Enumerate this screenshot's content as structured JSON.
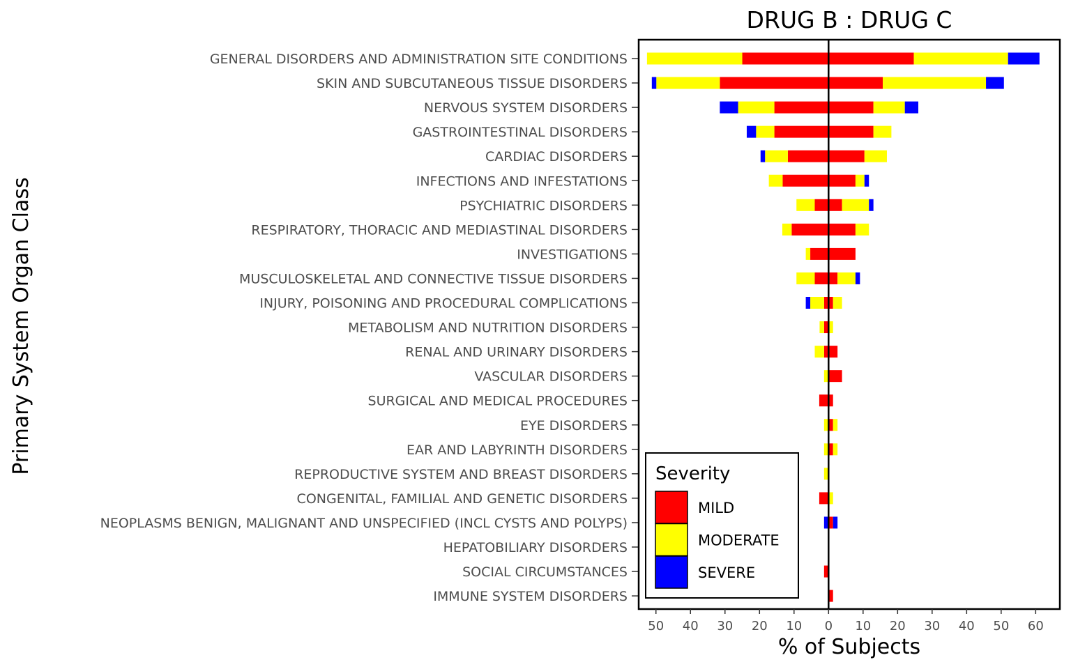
{
  "chart_data": {
    "type": "bar",
    "orientation": "horizontal",
    "stacked": "diverging",
    "title": "DRUG B : DRUG C",
    "xlabel": "% of Subjects",
    "ylabel": "Primary System Organ Class",
    "xlim": [
      -55,
      67
    ],
    "xticks": [
      -50,
      -40,
      -30,
      -20,
      -10,
      0,
      10,
      20,
      30,
      40,
      50,
      60
    ],
    "xtick_labels": [
      "50",
      "40",
      "30",
      "20",
      "10",
      "0",
      "10",
      "20",
      "30",
      "40",
      "50",
      "60"
    ],
    "left_group": "DRUG B",
    "right_group": "DRUG C",
    "grid": false,
    "legend_position": "bottom-left-inside",
    "legend_title": "Severity",
    "categories": [
      "GENERAL DISORDERS AND ADMINISTRATION SITE CONDITIONS",
      "SKIN AND SUBCUTANEOUS TISSUE DISORDERS",
      "NERVOUS SYSTEM DISORDERS",
      "GASTROINTESTINAL DISORDERS",
      "CARDIAC DISORDERS",
      "INFECTIONS AND INFESTATIONS",
      "PSYCHIATRIC DISORDERS",
      "RESPIRATORY, THORACIC AND MEDIASTINAL DISORDERS",
      "INVESTIGATIONS",
      "MUSCULOSKELETAL AND CONNECTIVE TISSUE DISORDERS",
      "INJURY, POISONING AND PROCEDURAL COMPLICATIONS",
      "METABOLISM AND NUTRITION DISORDERS",
      "RENAL AND URINARY DISORDERS",
      "VASCULAR DISORDERS",
      "SURGICAL AND MEDICAL PROCEDURES",
      "EYE DISORDERS",
      "EAR AND LABYRINTH DISORDERS",
      "REPRODUCTIVE SYSTEM AND BREAST DISORDERS",
      "CONGENITAL, FAMILIAL AND GENETIC DISORDERS",
      "NEOPLASMS BENIGN, MALIGNANT AND UNSPECIFIED (INCL CYSTS AND POLYPS)",
      "HEPATOBILIARY DISORDERS",
      "SOCIAL CIRCUMSTANCES",
      "IMMUNE SYSTEM DISORDERS"
    ],
    "series": [
      {
        "name": "MILD",
        "color": "#ff0000",
        "left_values": [
          25.0,
          31.5,
          15.7,
          15.7,
          11.8,
          13.3,
          4.0,
          10.7,
          5.3,
          4.0,
          1.3,
          1.3,
          1.3,
          0,
          2.7,
          0,
          0,
          0,
          2.7,
          0,
          0,
          1.3,
          0
        ],
        "right_values": [
          24.7,
          15.7,
          13.0,
          13.0,
          10.4,
          7.8,
          3.9,
          7.8,
          7.8,
          2.6,
          1.3,
          0,
          2.6,
          3.9,
          1.3,
          1.3,
          1.3,
          0,
          0,
          1.3,
          0,
          0,
          1.3
        ]
      },
      {
        "name": "MODERATE",
        "color": "#ffff00",
        "left_values": [
          27.6,
          18.4,
          10.5,
          5.3,
          6.6,
          4.0,
          5.3,
          2.7,
          1.3,
          5.3,
          4.0,
          1.3,
          2.7,
          1.3,
          0,
          1.3,
          1.3,
          1.3,
          0,
          0,
          0,
          0,
          0
        ],
        "right_values": [
          27.3,
          29.9,
          9.1,
          5.2,
          6.5,
          2.6,
          7.8,
          3.9,
          0,
          5.2,
          2.6,
          1.3,
          0,
          0,
          0,
          1.3,
          1.3,
          0,
          1.3,
          0,
          0,
          0,
          0
        ]
      },
      {
        "name": "SEVERE",
        "color": "#0000ff",
        "left_values": [
          0,
          1.3,
          5.3,
          2.7,
          1.3,
          0,
          0,
          0,
          0,
          0,
          1.3,
          0,
          0,
          0,
          0,
          0,
          0,
          0,
          0,
          1.3,
          0,
          0,
          0
        ],
        "right_values": [
          9.1,
          5.2,
          3.9,
          0,
          0,
          1.3,
          1.3,
          0,
          0,
          1.3,
          0,
          0,
          0,
          0,
          0,
          0,
          0,
          0,
          0,
          1.3,
          0,
          0,
          0
        ]
      }
    ]
  }
}
